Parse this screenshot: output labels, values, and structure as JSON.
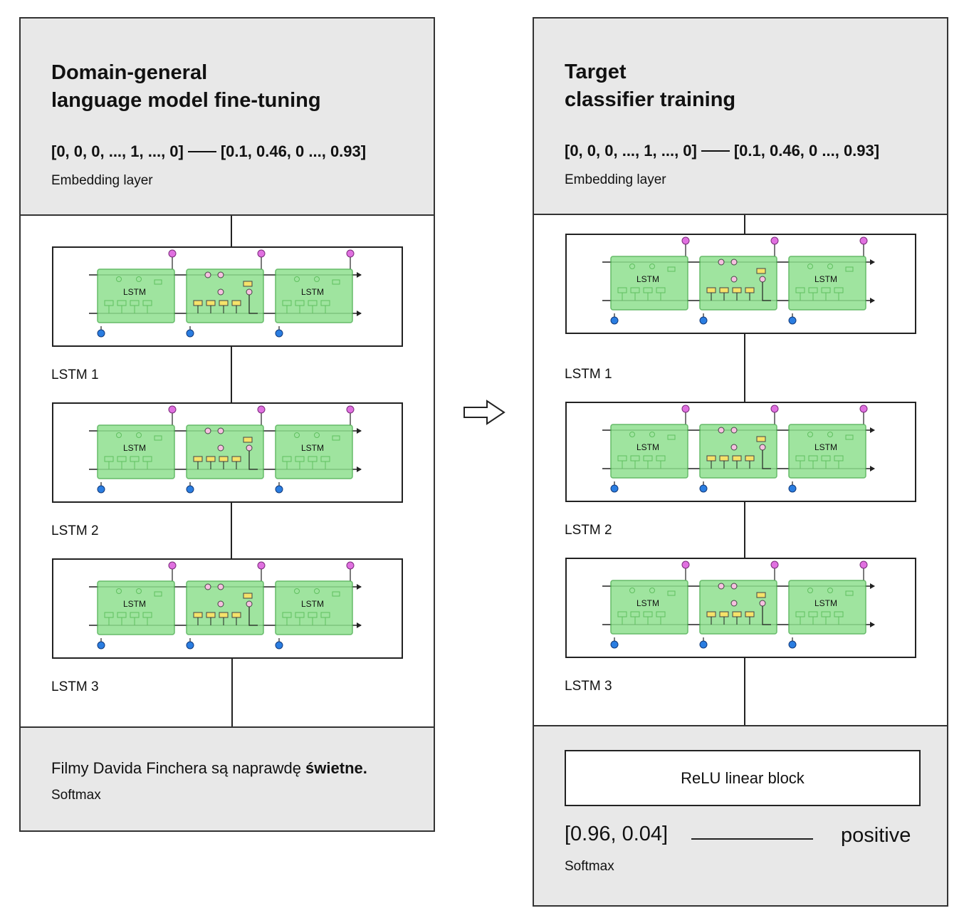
{
  "left_panel": {
    "title_line1": "Domain-general",
    "title_line2": "language model fine-tuning",
    "vector_in": "[0, 0, 0, ..., 1, ..., 0]",
    "vector_out": "[0.1, 0.46, 0 ..., 0.93]",
    "embedding_label": "Embedding layer",
    "lstm_labels": [
      "LSTM 1",
      "LSTM 2",
      "LSTM 3"
    ],
    "sentence_plain": "Filmy Davida Finchera są naprawdę ",
    "sentence_bold": "świetne.",
    "softmax_label": "Softmax"
  },
  "right_panel": {
    "title_line1": "Target",
    "title_line2": "classifier training",
    "vector_in": "[0, 0, 0, ..., 1, ..., 0]",
    "vector_out": "[0.1, 0.46, 0 ..., 0.93]",
    "embedding_label": "Embedding layer",
    "lstm_labels": [
      "LSTM 1",
      "LSTM 2",
      "LSTM 3"
    ],
    "relu_label": "ReLU linear block",
    "probabilities": "[0.96, 0.04]",
    "prediction": "positive",
    "softmax_label": "Softmax"
  },
  "lstm_cell_text": "LSTM",
  "colors": {
    "panel_bg": "#e8e8e8",
    "cell_green": "#8fe08f",
    "cell_border": "#4caf50",
    "output_node": "#e070e0",
    "input_node": "#2a7de1",
    "gate_yellow": "#f5e26a"
  }
}
